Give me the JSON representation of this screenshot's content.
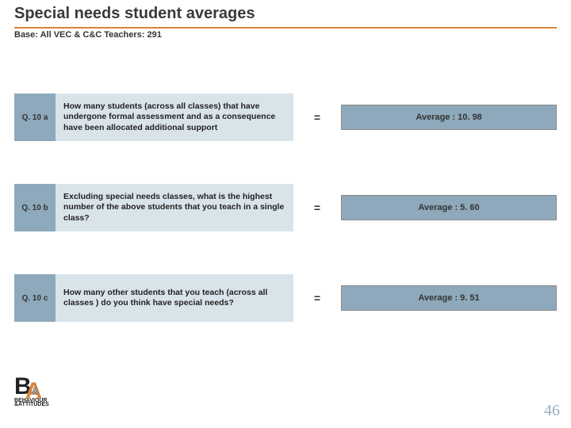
{
  "title": "Special needs student averages",
  "base": "Base: All VEC & C&C Teachers: 291",
  "colors": {
    "qbox_bg": "#8ea9bb",
    "desc_bg": "#d9e4ea",
    "avg_bg": "#8ea9bb",
    "underline": "#d9833b",
    "page_num": "#9aaec0"
  },
  "layout": {
    "row_tops": [
      118,
      232,
      346
    ]
  },
  "rows": [
    {
      "q": "Q. 10 a",
      "desc": "How many students (across all classes) that have undergone formal assessment and as a consequence have been allocated additional support",
      "eq": "=",
      "avg": "Average : 10. 98"
    },
    {
      "q": "Q. 10 b",
      "desc": "Excluding special needs classes, what is the highest number of the above students that you teach in a single class?",
      "eq": "=",
      "avg": "Average : 5. 60"
    },
    {
      "q": "Q. 10 c",
      "desc": "How many other students that you teach (across all classes ) do you think have special needs?",
      "eq": "=",
      "avg": "Average : 9. 51"
    }
  ],
  "logo": {
    "line1": "BEHAVIOUR",
    "line2": "&ATTITUDES"
  },
  "page_number": "46"
}
